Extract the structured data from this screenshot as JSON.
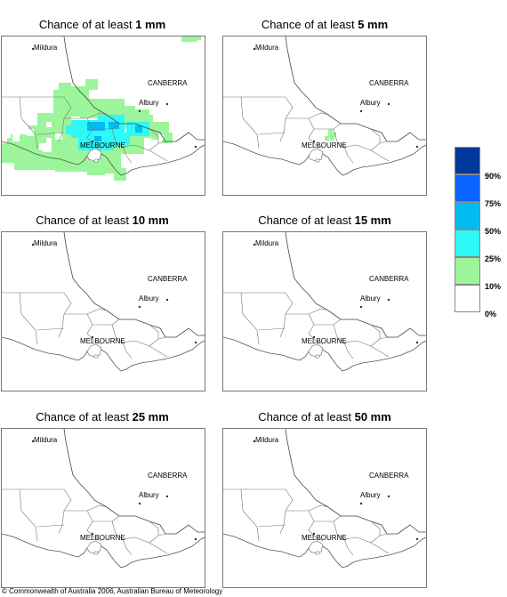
{
  "panels": [
    {
      "prefix": "Chance of at least ",
      "amount": "1 mm"
    },
    {
      "prefix": "Chance of at least ",
      "amount": "5 mm"
    },
    {
      "prefix": "Chance of at least ",
      "amount": "10 mm"
    },
    {
      "prefix": "Chance of at least ",
      "amount": "15 mm"
    },
    {
      "prefix": "Chance of at least ",
      "amount": "25 mm"
    },
    {
      "prefix": "Chance of at least ",
      "amount": "50 mm"
    }
  ],
  "places": {
    "mildura": "Mildura",
    "canberra": "CANBERRA",
    "albury": "Albury",
    "melbourne": "MELBOURNE"
  },
  "legend": {
    "classes": [
      {
        "label": "90%",
        "color": "#00379b"
      },
      {
        "label": "75%",
        "color": "#0a64ff"
      },
      {
        "label": "50%",
        "color": "#00bcf0"
      },
      {
        "label": "25%",
        "color": "#2ef8f8"
      },
      {
        "label": "10%",
        "color": "#9cf59a"
      },
      {
        "label": "0%",
        "color": "#ffffff"
      }
    ]
  },
  "credit": "© Commonwealth of Australia 2006, Australian Bureau of Meteorology"
}
